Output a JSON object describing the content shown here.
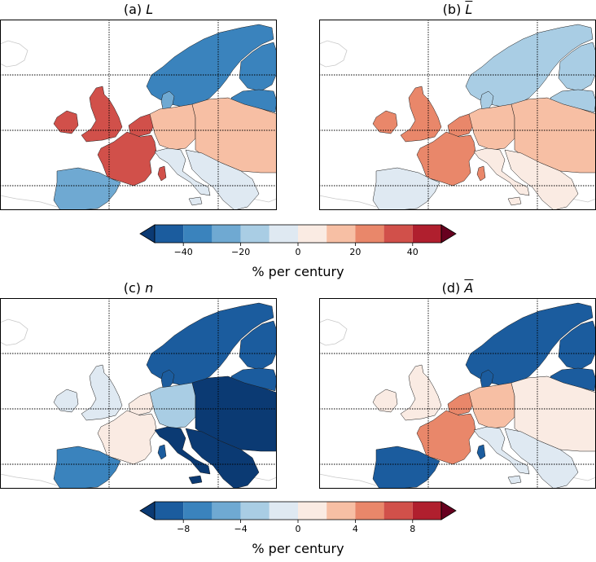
{
  "panels": [
    {
      "id": "a",
      "prefix": "(a)",
      "symbol": "L",
      "overbar": false
    },
    {
      "id": "b",
      "prefix": "(b)",
      "symbol": "L",
      "overbar": true
    },
    {
      "id": "c",
      "prefix": "(c)",
      "symbol": "n",
      "overbar": false
    },
    {
      "id": "d",
      "prefix": "(d)",
      "symbol": "A",
      "overbar": true
    }
  ],
  "colorbars": [
    {
      "label": "% per century",
      "ticks": [
        "−40",
        "−20",
        "0",
        "20",
        "40"
      ]
    },
    {
      "label": "% per century",
      "ticks": [
        "−8",
        "−4",
        "0",
        "4",
        "8"
      ]
    }
  ],
  "colors": {
    "scale": [
      "#1b5c9e",
      "#3a83bd",
      "#6fa9d2",
      "#a9cde4",
      "#dfe9f2",
      "#faebe3",
      "#f7bfa4",
      "#e9876a",
      "#d1504a",
      "#b01f2e"
    ],
    "under": "#0b3a73",
    "over": "#67001f"
  },
  "region_classes": {
    "a": {
      "scand": 1,
      "balt": 1,
      "finland": 1,
      "denmark": 2,
      "uk": 8,
      "benelux": 8,
      "france": 8,
      "iberia": 2,
      "central": 6,
      "east": 6,
      "italy": 4,
      "balkans": 4,
      "corsica": 8
    },
    "b": {
      "scand": 3,
      "balt": 3,
      "finland": 3,
      "denmark": 3,
      "uk": 7,
      "benelux": 7,
      "france": 7,
      "iberia": 4,
      "central": 6,
      "east": 6,
      "italy": 5,
      "balkans": 5,
      "corsica": 7
    },
    "c": {
      "scand": 0,
      "balt": 0,
      "finland": 0,
      "denmark": 0,
      "uk": 4,
      "benelux": 5,
      "france": 5,
      "iberia": 1,
      "central": 3,
      "east": -1,
      "italy": -1,
      "balkans": -1,
      "corsica": 0
    },
    "d": {
      "scand": 0,
      "balt": 0,
      "finland": 0,
      "denmark": 0,
      "uk": 5,
      "benelux": 7,
      "france": 7,
      "iberia": 0,
      "central": 6,
      "east": 5,
      "italy": 4,
      "balkans": 4,
      "corsica": 0
    }
  }
}
